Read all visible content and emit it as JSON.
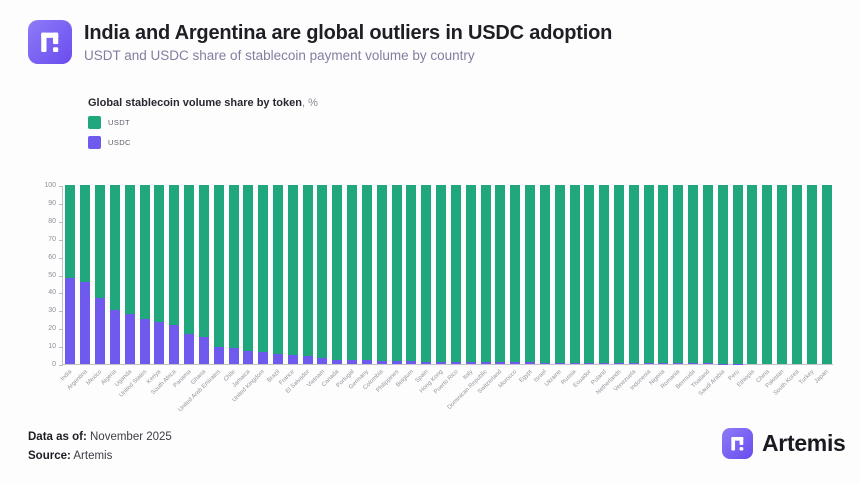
{
  "header": {
    "title": "India and Argentina are global outliers in USDC adoption",
    "subtitle": "USDT and USDC share of stablecoin payment volume by country"
  },
  "legend": {
    "title": "Global stablecoin volume share by token",
    "title_suffix": ", %",
    "items": [
      {
        "label": "USDT",
        "color": "#21a77d"
      },
      {
        "label": "USDC",
        "color": "#6e5bee"
      }
    ]
  },
  "chart_data": {
    "type": "bar",
    "stacked": true,
    "title": "Global stablecoin volume share by token, %",
    "xlabel": "",
    "ylabel": "",
    "ylim": [
      0,
      100
    ],
    "yticks": [
      0,
      10,
      20,
      30,
      40,
      50,
      60,
      70,
      80,
      90,
      100
    ],
    "grid": false,
    "legend_position": "top-left",
    "categories": [
      "India",
      "Argentina",
      "Mexico",
      "Algeria",
      "Uganda",
      "United States",
      "Kenya",
      "South Africa",
      "Panama",
      "Ghana",
      "United Arab Emirates",
      "Chile",
      "Jamaica",
      "United Kingdom",
      "Brazil",
      "France",
      "El Salvador",
      "Vietnam",
      "Canada",
      "Portugal",
      "Germany",
      "Colombia",
      "Philippines",
      "Belgium",
      "Spain",
      "Hong Kong",
      "Puerto Rico",
      "Italy",
      "Dominican Republic",
      "Switzerland",
      "Morocco",
      "Egypt",
      "Israel",
      "Ukraine",
      "Russia",
      "Ecuador",
      "Poland",
      "Netherlands",
      "Venezuela",
      "Indonesia",
      "Nigeria",
      "Romania",
      "Bermuda",
      "Thailand",
      "Saudi Arabia",
      "Peru",
      "Ethiopia",
      "China",
      "Pakistan",
      "South Korea",
      "Turkey",
      "Japan"
    ],
    "series": [
      {
        "name": "USDT",
        "color": "#21a77d",
        "values": [
          52,
          54,
          63,
          70,
          72,
          75,
          76.5,
          78,
          83,
          85,
          90.5,
          91,
          93,
          93.5,
          94.5,
          95,
          95.5,
          96.5,
          97.5,
          97.8,
          98,
          98.2,
          98.4,
          98.5,
          98.6,
          98.7,
          98.8,
          98.9,
          99,
          99,
          99.1,
          99.1,
          99.2,
          99.2,
          99.3,
          99.3,
          99.4,
          99.4,
          99.5,
          99.5,
          99.6,
          99.6,
          99.7,
          99.7,
          99.8,
          99.8,
          100,
          100,
          100,
          100,
          100,
          100
        ]
      },
      {
        "name": "USDC",
        "color": "#6e5bee",
        "values": [
          48,
          46,
          37,
          30,
          28,
          25,
          23.5,
          22,
          17,
          15,
          9.5,
          9,
          7,
          6.5,
          5.5,
          5,
          4.5,
          3.5,
          2.5,
          2.2,
          2,
          1.8,
          1.6,
          1.5,
          1.4,
          1.3,
          1.2,
          1.1,
          1,
          1,
          0.9,
          0.9,
          0.8,
          0.8,
          0.7,
          0.7,
          0.6,
          0.6,
          0.5,
          0.5,
          0.4,
          0.4,
          0.3,
          0.3,
          0.2,
          0.2,
          0,
          0,
          0,
          0,
          0,
          0
        ]
      }
    ]
  },
  "footer": {
    "data_as_of_label": "Data as of:",
    "data_as_of_value": " November 2025",
    "source_label": "Source:",
    "source_value": " Artemis",
    "brand_name": "Artemis"
  }
}
